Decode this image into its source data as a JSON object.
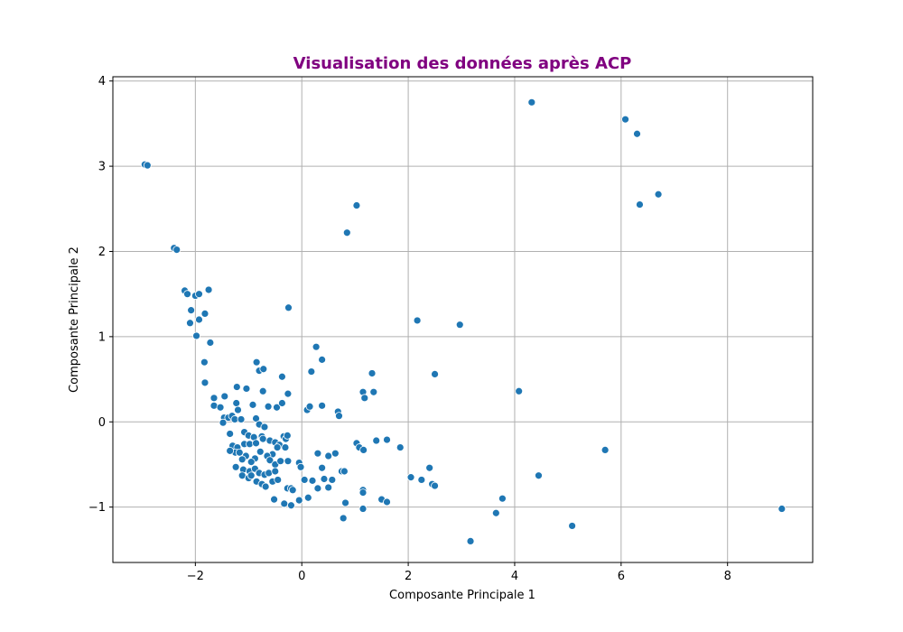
{
  "chart_data": {
    "type": "scatter",
    "title": "Visualisation des données après ACP",
    "xlabel": "Composante Principale 1",
    "ylabel": "Composante Principale 2",
    "xlim": [
      -3.55,
      9.6
    ],
    "ylim": [
      -1.65,
      4.05
    ],
    "xticks": [
      -2,
      0,
      2,
      4,
      6,
      8
    ],
    "xtick_labels": [
      "−2",
      "0",
      "2",
      "4",
      "6",
      "8"
    ],
    "yticks": [
      -1,
      0,
      1,
      2,
      3,
      4
    ],
    "ytick_labels": [
      "−1",
      "0",
      "1",
      "2",
      "3",
      "4"
    ],
    "grid": true,
    "colors": {
      "title": "#800080",
      "marker": "#1f77b4",
      "grid": "#b0b0b0"
    },
    "series": [
      {
        "points": [
          [
            -2.95,
            3.02
          ],
          [
            -2.9,
            3.01
          ],
          [
            -2.4,
            2.04
          ],
          [
            -2.35,
            2.02
          ],
          [
            -2.2,
            1.54
          ],
          [
            -2.15,
            1.5
          ],
          [
            -2.0,
            1.48
          ],
          [
            -1.93,
            1.5
          ],
          [
            -1.75,
            1.55
          ],
          [
            -2.08,
            1.31
          ],
          [
            -1.82,
            1.27
          ],
          [
            -2.1,
            1.16
          ],
          [
            -1.93,
            1.2
          ],
          [
            -1.98,
            1.01
          ],
          [
            -1.72,
            0.93
          ],
          [
            -1.83,
            0.7
          ],
          [
            -1.82,
            0.46
          ],
          [
            -1.65,
            0.28
          ],
          [
            -1.45,
            0.3
          ],
          [
            -1.65,
            0.19
          ],
          [
            -1.53,
            0.17
          ],
          [
            -1.46,
            0.05
          ],
          [
            -1.38,
            0.05
          ],
          [
            -1.31,
            0.07
          ],
          [
            -1.26,
            0.03
          ],
          [
            -1.14,
            0.03
          ],
          [
            -1.48,
            -0.01
          ],
          [
            -1.23,
            0.22
          ],
          [
            -1.22,
            0.41
          ],
          [
            -1.04,
            0.39
          ],
          [
            -1.2,
            0.14
          ],
          [
            -0.85,
            0.7
          ],
          [
            -0.8,
            0.6
          ],
          [
            -0.72,
            0.62
          ],
          [
            -0.73,
            0.36
          ],
          [
            -0.92,
            0.2
          ],
          [
            -0.63,
            0.18
          ],
          [
            -0.47,
            0.17
          ],
          [
            -0.37,
            0.22
          ],
          [
            -0.37,
            0.53
          ],
          [
            -0.26,
            0.33
          ],
          [
            -0.25,
            1.34
          ],
          [
            -0.86,
            0.04
          ],
          [
            -0.8,
            -0.03
          ],
          [
            -0.7,
            -0.06
          ],
          [
            -1.35,
            -0.14
          ],
          [
            -1.08,
            -0.12
          ],
          [
            -1.0,
            -0.16
          ],
          [
            -0.9,
            -0.18
          ],
          [
            -0.75,
            -0.17
          ],
          [
            -1.3,
            -0.28
          ],
          [
            -1.21,
            -0.3
          ],
          [
            -1.25,
            -0.36
          ],
          [
            -1.35,
            -0.34
          ],
          [
            -1.17,
            -0.36
          ],
          [
            -1.08,
            -0.26
          ],
          [
            -0.98,
            -0.26
          ],
          [
            -0.86,
            -0.25
          ],
          [
            -0.73,
            -0.2
          ],
          [
            -0.6,
            -0.22
          ],
          [
            -0.5,
            -0.24
          ],
          [
            -0.42,
            -0.27
          ],
          [
            -0.34,
            -0.17
          ],
          [
            -0.3,
            -0.2
          ],
          [
            -0.27,
            -0.16
          ],
          [
            -0.31,
            -0.3
          ],
          [
            -0.46,
            -0.3
          ],
          [
            -0.55,
            -0.38
          ],
          [
            -0.65,
            -0.4
          ],
          [
            -0.78,
            -0.35
          ],
          [
            -0.88,
            -0.43
          ],
          [
            -0.95,
            -0.47
          ],
          [
            -1.05,
            -0.4
          ],
          [
            -1.12,
            -0.44
          ],
          [
            -0.6,
            -0.45
          ],
          [
            -0.5,
            -0.5
          ],
          [
            -0.4,
            -0.46
          ],
          [
            -0.26,
            -0.46
          ],
          [
            -1.24,
            -0.53
          ],
          [
            -1.1,
            -0.56
          ],
          [
            -0.98,
            -0.58
          ],
          [
            -0.88,
            -0.55
          ],
          [
            -0.8,
            -0.6
          ],
          [
            -0.7,
            -0.62
          ],
          [
            -0.62,
            -0.6
          ],
          [
            -0.5,
            -0.58
          ],
          [
            -1.12,
            -0.63
          ],
          [
            -1.0,
            -0.66
          ],
          [
            -0.95,
            -0.63
          ],
          [
            -0.85,
            -0.7
          ],
          [
            -0.75,
            -0.73
          ],
          [
            -0.68,
            -0.76
          ],
          [
            -0.55,
            -0.7
          ],
          [
            -0.45,
            -0.68
          ],
          [
            -0.27,
            -0.78
          ],
          [
            -0.2,
            -0.78
          ],
          [
            -0.17,
            -0.8
          ],
          [
            -0.52,
            -0.91
          ],
          [
            -0.33,
            -0.96
          ],
          [
            -0.2,
            -0.98
          ],
          [
            -0.05,
            -0.92
          ],
          [
            -0.05,
            -0.48
          ],
          [
            -0.02,
            -0.53
          ],
          [
            0.05,
            -0.68
          ],
          [
            0.2,
            -0.69
          ],
          [
            0.12,
            -0.89
          ],
          [
            0.3,
            -0.78
          ],
          [
            0.42,
            -0.67
          ],
          [
            0.5,
            -0.77
          ],
          [
            0.57,
            -0.68
          ],
          [
            0.38,
            -0.54
          ],
          [
            0.3,
            -0.37
          ],
          [
            0.5,
            -0.4
          ],
          [
            0.63,
            -0.37
          ],
          [
            0.75,
            -0.58
          ],
          [
            0.8,
            -0.58
          ],
          [
            0.82,
            -0.95
          ],
          [
            0.78,
            -1.13
          ],
          [
            0.1,
            0.14
          ],
          [
            0.15,
            0.18
          ],
          [
            0.38,
            0.19
          ],
          [
            0.68,
            0.12
          ],
          [
            0.7,
            0.07
          ],
          [
            0.18,
            0.59
          ],
          [
            0.27,
            0.88
          ],
          [
            0.38,
            0.73
          ],
          [
            1.32,
            0.57
          ],
          [
            1.15,
            0.35
          ],
          [
            1.18,
            0.28
          ],
          [
            1.35,
            0.35
          ],
          [
            1.03,
            -0.25
          ],
          [
            1.08,
            -0.3
          ],
          [
            1.16,
            -0.33
          ],
          [
            1.4,
            -0.22
          ],
          [
            1.6,
            -0.21
          ],
          [
            1.85,
            -0.3
          ],
          [
            1.15,
            -0.8
          ],
          [
            1.15,
            -0.83
          ],
          [
            1.15,
            -1.02
          ],
          [
            1.5,
            -0.91
          ],
          [
            1.6,
            -0.94
          ],
          [
            2.05,
            -0.65
          ],
          [
            2.25,
            -0.68
          ],
          [
            2.4,
            -0.54
          ],
          [
            2.45,
            -0.73
          ],
          [
            2.5,
            -0.75
          ],
          [
            2.17,
            1.19
          ],
          [
            2.5,
            0.56
          ],
          [
            2.97,
            1.14
          ],
          [
            0.85,
            2.22
          ],
          [
            1.03,
            2.54
          ],
          [
            3.17,
            -1.4
          ],
          [
            3.65,
            -1.07
          ],
          [
            3.77,
            -0.9
          ],
          [
            4.08,
            0.36
          ],
          [
            4.32,
            3.75
          ],
          [
            4.45,
            -0.63
          ],
          [
            5.08,
            -1.22
          ],
          [
            5.7,
            -0.33
          ],
          [
            6.08,
            3.55
          ],
          [
            6.3,
            3.38
          ],
          [
            6.35,
            2.55
          ],
          [
            6.7,
            2.67
          ],
          [
            9.02,
            -1.02
          ]
        ]
      }
    ]
  }
}
